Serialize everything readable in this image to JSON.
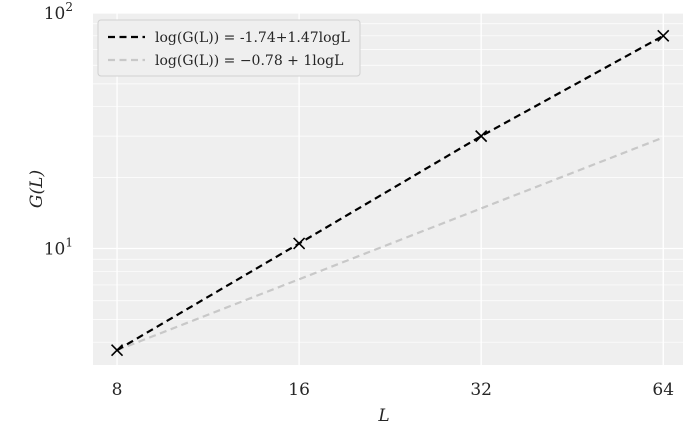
{
  "chart_data": {
    "type": "line",
    "xlabel": "L",
    "ylabel": "G(L)",
    "x_scale": "log2",
    "y_scale": "log10",
    "xlim": [
      7.3,
      69
    ],
    "ylim": [
      3.2,
      100
    ],
    "x_ticks": [
      8,
      16,
      32,
      64
    ],
    "x_tick_labels": [
      "8",
      "16",
      "32",
      "64"
    ],
    "y_ticks": [
      {
        "value": 10,
        "base": "10",
        "exp": "1"
      },
      {
        "value": 100,
        "base": "10",
        "exp": "2"
      }
    ],
    "grid": true,
    "legend_position": "top-left",
    "series": [
      {
        "name": "log(G(L)) = -1.74+1.47logL",
        "style": "dashed",
        "color": "#000000",
        "x": [
          8,
          16,
          32,
          64
        ],
        "y": [
          3.7,
          10.5,
          30.0,
          80.0
        ]
      },
      {
        "name": "log(G(L)) = −0.78 + 1logL",
        "style": "dashed",
        "color": "#c8c8c8",
        "x": [
          8,
          16,
          32,
          64
        ],
        "y": [
          3.7,
          7.4,
          14.8,
          29.6
        ]
      }
    ],
    "markers": {
      "symbol": "x",
      "color": "#000000",
      "x": [
        8,
        16,
        32,
        64
      ],
      "y": [
        3.7,
        10.5,
        30.0,
        80.0
      ]
    }
  }
}
